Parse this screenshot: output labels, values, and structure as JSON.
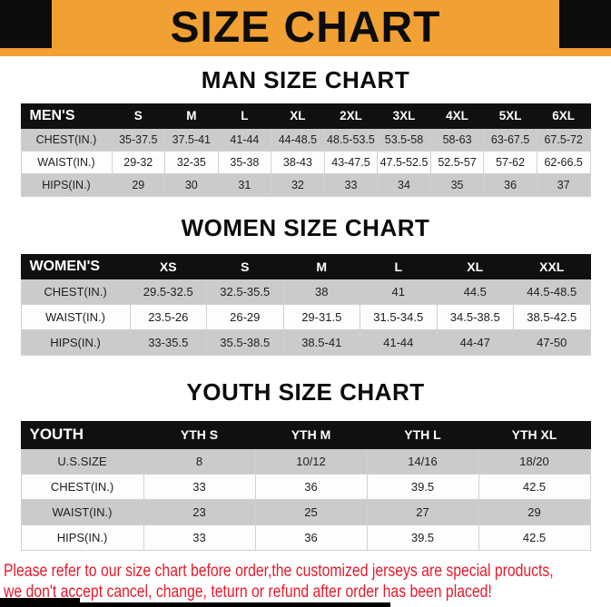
{
  "banner": {
    "title": "SIZE CHART"
  },
  "colors": {
    "banner_bg": "#F1A033",
    "banner_corner": "#0C0C0C",
    "table_header_bg": "#101010",
    "row_alt_bg": "#CBCBCB",
    "footer_text": "#E8192C"
  },
  "sections": [
    {
      "title": "MAN SIZE CHART",
      "table": {
        "header": [
          "MEN'S",
          "S",
          "M",
          "L",
          "XL",
          "2XL",
          "3XL",
          "4XL",
          "5XL",
          "6XL"
        ],
        "rows": [
          [
            "CHEST(IN.)",
            "35-37.5",
            "37.5-41",
            "41-44",
            "44-48.5",
            "48.5-53.5",
            "53.5-58",
            "58-63",
            "63-67.5",
            "67.5-72"
          ],
          [
            "WAIST(IN.)",
            "29-32",
            "32-35",
            "35-38",
            "38-43",
            "43-47.5",
            "47.5-52.5",
            "52.5-57",
            "57-62",
            "62-66.5"
          ],
          [
            "HIPS(IN.)",
            "29",
            "30",
            "31",
            "32",
            "33",
            "34",
            "35",
            "36",
            "37"
          ]
        ]
      }
    },
    {
      "title": "WOMEN SIZE CHART",
      "table": {
        "header": [
          "WOMEN'S",
          "XS",
          "S",
          "M",
          "L",
          "XL",
          "XXL"
        ],
        "rows": [
          [
            "CHEST(IN.)",
            "29.5-32.5",
            "32.5-35.5",
            "38",
            "41",
            "44.5",
            "44.5-48.5"
          ],
          [
            "WAIST(IN.)",
            "23.5-26",
            "26-29",
            "29-31.5",
            "31.5-34.5",
            "34.5-38.5",
            "38.5-42.5"
          ],
          [
            "HIPS(IN.)",
            "33-35.5",
            "35.5-38.5",
            "38.5-41",
            "41-44",
            "44-47",
            "47-50"
          ]
        ]
      }
    },
    {
      "title": "YOUTH SIZE CHART",
      "table": {
        "header": [
          "YOUTH",
          "YTH S",
          "YTH M",
          "YTH L",
          "YTH XL"
        ],
        "rows": [
          [
            "U.S.SIZE",
            "8",
            "10/12",
            "14/16",
            "18/20"
          ],
          [
            "CHEST(IN.)",
            "33",
            "36",
            "39.5",
            "42.5"
          ],
          [
            "WAIST(IN.)",
            "23",
            "25",
            "27",
            "29"
          ],
          [
            "HIPS(IN.)",
            "33",
            "36",
            "39.5",
            "42.5"
          ]
        ]
      }
    }
  ],
  "footer": {
    "line1": "Please refer to our size chart before order,the customized jerseys are special products,",
    "line2": "we don't accept cancel, change, teturn or refund after order has been placed!"
  }
}
